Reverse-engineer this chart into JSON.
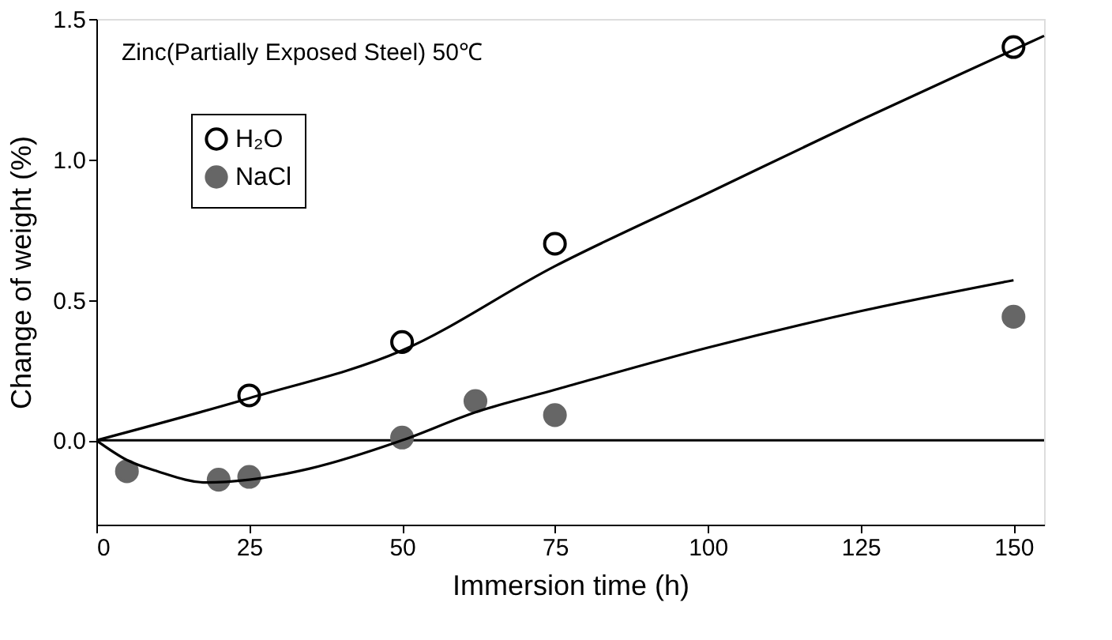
{
  "chart_data": {
    "type": "scatter",
    "xlabel": "Immersion time (h)",
    "ylabel": "Change of weight (%)",
    "annotations": [
      "Zinc(Partially Exposed Steel) 50℃"
    ],
    "xlim": [
      0,
      155
    ],
    "xticks": [
      0,
      25,
      50,
      75,
      100,
      125,
      150
    ],
    "ylim": [
      -0.3,
      1.5
    ],
    "yticks": [
      {
        "value": 0,
        "label": "0.0"
      },
      0.5,
      {
        "value": 1,
        "label": "1.0"
      },
      1.5
    ],
    "legend": "top left",
    "ref_lines": [
      {
        "axis": "y",
        "value": 0,
        "color": "#000000"
      }
    ],
    "series": [
      {
        "name": "H₂O",
        "marker": "circle",
        "color": "#ffffff",
        "x": [
          25,
          50,
          75,
          150
        ],
        "values": [
          0.16,
          0.35,
          0.7,
          1.4
        ]
      },
      {
        "name": "NaCl",
        "marker": "circle",
        "color": "#666666",
        "x": [
          5,
          20,
          25,
          50,
          62,
          75,
          150
        ],
        "values": [
          -0.11,
          -0.14,
          -0.13,
          0.01,
          0.14,
          0.09,
          0.44
        ]
      },
      {
        "type": "line",
        "marker": "none",
        "color": "#000000",
        "x": [
          0,
          25,
          50,
          75,
          100,
          125,
          150,
          155
        ],
        "values": [
          0,
          0.15,
          0.32,
          0.62,
          0.88,
          1.14,
          1.39,
          1.44
        ]
      },
      {
        "type": "line",
        "marker": "none",
        "color": "#000000",
        "x": [
          0,
          5,
          10,
          18,
          25,
          35,
          50,
          62,
          75,
          100,
          125,
          150
        ],
        "values": [
          0,
          -0.07,
          -0.11,
          -0.15,
          -0.14,
          -0.1,
          0.0,
          0.1,
          0.18,
          0.33,
          0.46,
          0.57
        ]
      }
    ]
  }
}
